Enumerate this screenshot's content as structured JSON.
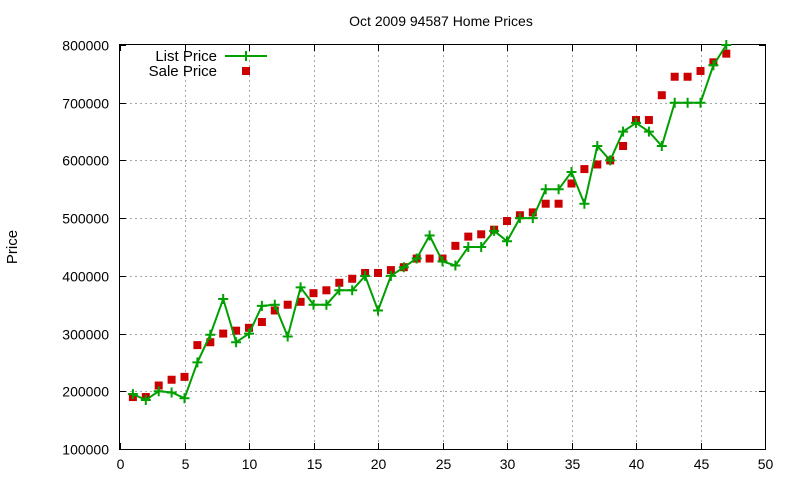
{
  "chart_data": {
    "type": "line",
    "title": "Oct 2009 94587 Home Prices",
    "xlabel": "",
    "ylabel": "Price",
    "xlim": [
      0,
      50
    ],
    "ylim": [
      100000,
      800000
    ],
    "x_ticks": [
      "0",
      "5",
      "10",
      "15",
      "20",
      "25",
      "30",
      "35",
      "40",
      "45",
      "50"
    ],
    "y_ticks": [
      "100000",
      "200000",
      "300000",
      "400000",
      "500000",
      "600000",
      "700000",
      "800000"
    ],
    "grid": true,
    "legend_position": "top-left",
    "series": [
      {
        "name": "List Price",
        "style": "line-with-plus-markers",
        "color": "#00a000",
        "x": [
          1,
          2,
          3,
          4,
          5,
          6,
          7,
          8,
          9,
          10,
          11,
          12,
          13,
          14,
          15,
          16,
          17,
          18,
          19,
          20,
          21,
          22,
          23,
          24,
          25,
          26,
          27,
          28,
          29,
          30,
          31,
          32,
          33,
          34,
          35,
          36,
          37,
          38,
          39,
          40,
          41,
          42,
          43,
          44,
          45,
          46,
          47
        ],
        "y": [
          195000,
          185000,
          200000,
          198000,
          188000,
          250000,
          298000,
          360000,
          285000,
          300000,
          348000,
          350000,
          295000,
          380000,
          350000,
          350000,
          375000,
          375000,
          400000,
          340000,
          400000,
          415000,
          430000,
          470000,
          425000,
          418000,
          450000,
          450000,
          478000,
          460000,
          500000,
          500000,
          550000,
          550000,
          580000,
          525000,
          625000,
          600000,
          650000,
          665000,
          650000,
          625000,
          700000,
          700000,
          700000,
          765000,
          800000
        ]
      },
      {
        "name": "Sale Price",
        "style": "square-markers",
        "color": "#cc0000",
        "x": [
          1,
          2,
          3,
          4,
          5,
          6,
          7,
          8,
          9,
          10,
          11,
          12,
          13,
          14,
          15,
          16,
          17,
          18,
          19,
          20,
          21,
          22,
          23,
          24,
          25,
          26,
          27,
          28,
          29,
          30,
          31,
          32,
          33,
          34,
          35,
          36,
          37,
          38,
          39,
          40,
          41,
          42,
          43,
          44,
          45,
          46,
          47
        ],
        "y": [
          190000,
          190000,
          210000,
          220000,
          225000,
          280000,
          285000,
          300000,
          305000,
          310000,
          320000,
          340000,
          350000,
          355000,
          370000,
          375000,
          388000,
          395000,
          405000,
          405000,
          410000,
          415000,
          430000,
          430000,
          430000,
          452000,
          468000,
          472000,
          480000,
          495000,
          505000,
          510000,
          525000,
          525000,
          560000,
          585000,
          593000,
          600000,
          625000,
          670000,
          670000,
          713000,
          745000,
          745000,
          755000,
          770000,
          785000
        ]
      }
    ]
  }
}
